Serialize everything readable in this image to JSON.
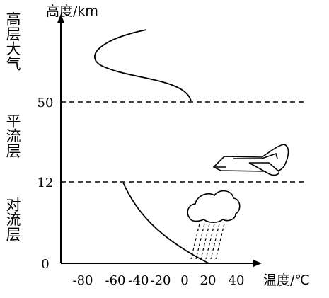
{
  "axes": {
    "y_label": "高度/km",
    "x_label": "温度/℃",
    "y_ticks": [
      "0",
      "12",
      "50"
    ],
    "x_ticks": [
      "-80",
      "-60",
      "-40",
      "-20",
      "0",
      "20",
      "40"
    ]
  },
  "layers": [
    {
      "name": "高层大气"
    },
    {
      "name": "平流层"
    },
    {
      "name": "对流层"
    }
  ],
  "icons": {
    "airplane": "airplane-icon",
    "rain_cloud": "rain-cloud-icon"
  }
}
